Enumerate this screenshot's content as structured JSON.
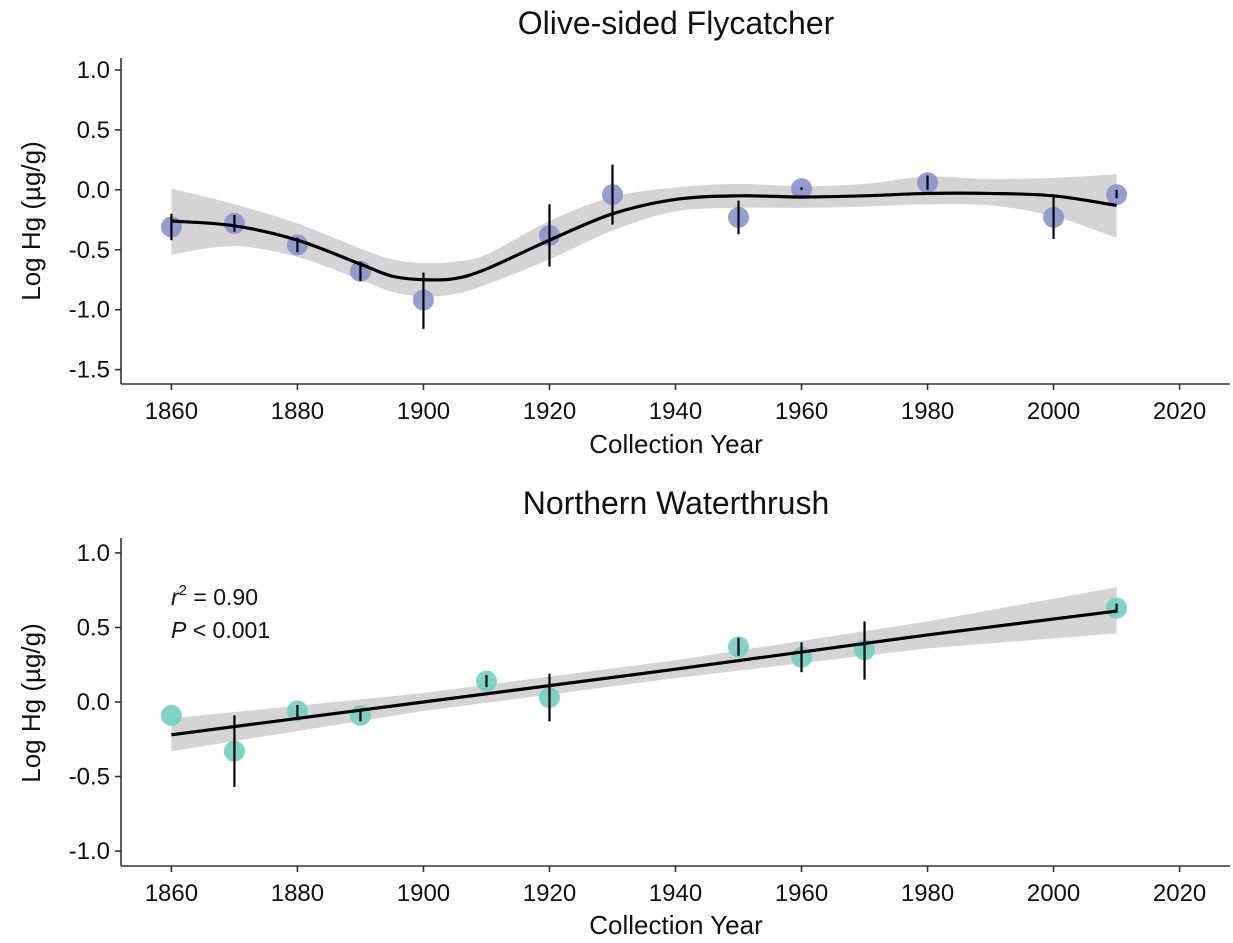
{
  "chart_data": [
    {
      "type": "scatter",
      "title": "Olive-sided Flycatcher",
      "xlabel": "Collection Year",
      "ylabel": "Log Hg (µg/g)",
      "xlim": [
        1852,
        2028
      ],
      "ylim": [
        -1.62,
        1.1
      ],
      "xticks": [
        1860,
        1880,
        1900,
        1920,
        1940,
        1960,
        1980,
        2000,
        2020
      ],
      "yticks": [
        1.0,
        0.5,
        0.0,
        -0.5,
        -1.0,
        -1.5
      ],
      "ytick_labels": [
        "1.0",
        "0.5",
        "0.0",
        "-0.5",
        "-1.0",
        "-1.5"
      ],
      "grid": false,
      "point_color": "#8a94cb",
      "points": [
        {
          "x": 1860,
          "y": -0.31,
          "lo": -0.42,
          "hi": -0.2
        },
        {
          "x": 1870,
          "y": -0.28,
          "lo": -0.35,
          "hi": -0.21
        },
        {
          "x": 1880,
          "y": -0.46,
          "lo": -0.52,
          "hi": -0.4
        },
        {
          "x": 1890,
          "y": -0.68,
          "lo": -0.76,
          "hi": -0.6
        },
        {
          "x": 1900,
          "y": -0.92,
          "lo": -1.16,
          "hi": -0.69
        },
        {
          "x": 1920,
          "y": -0.38,
          "lo": -0.64,
          "hi": -0.12
        },
        {
          "x": 1930,
          "y": -0.04,
          "lo": -0.29,
          "hi": 0.21
        },
        {
          "x": 1950,
          "y": -0.23,
          "lo": -0.37,
          "hi": -0.09
        },
        {
          "x": 1960,
          "y": 0.01,
          "lo": 0.0,
          "hi": 0.02
        },
        {
          "x": 1980,
          "y": 0.06,
          "lo": 0.0,
          "hi": 0.12
        },
        {
          "x": 2000,
          "y": -0.23,
          "lo": -0.41,
          "hi": -0.06
        },
        {
          "x": 2010,
          "y": -0.04,
          "lo": -0.07,
          "hi": 0.0
        }
      ],
      "trend": {
        "type": "smooth",
        "x": [
          1860,
          1870,
          1880,
          1890,
          1895,
          1900,
          1905,
          1910,
          1920,
          1930,
          1940,
          1950,
          1960,
          1970,
          1980,
          1990,
          2000,
          2010
        ],
        "y": [
          -0.26,
          -0.3,
          -0.42,
          -0.62,
          -0.72,
          -0.75,
          -0.74,
          -0.66,
          -0.42,
          -0.2,
          -0.08,
          -0.05,
          -0.06,
          -0.05,
          -0.03,
          -0.03,
          -0.05,
          -0.13
        ],
        "ci_lo": [
          -0.54,
          -0.47,
          -0.56,
          -0.75,
          -0.85,
          -0.89,
          -0.87,
          -0.79,
          -0.58,
          -0.34,
          -0.18,
          -0.15,
          -0.15,
          -0.14,
          -0.12,
          -0.13,
          -0.22,
          -0.4
        ],
        "ci_hi": [
          0.01,
          -0.12,
          -0.28,
          -0.49,
          -0.58,
          -0.61,
          -0.6,
          -0.54,
          -0.26,
          -0.06,
          0.02,
          0.05,
          0.03,
          0.05,
          0.11,
          0.09,
          0.1,
          0.13
        ],
        "line_color": "#000000",
        "band_color": "#d4d4d4"
      },
      "annotations": []
    },
    {
      "type": "scatter",
      "title": "Northern Waterthrush",
      "xlabel": "Collection Year",
      "ylabel": "Log Hg (µg/g)",
      "xlim": [
        1852,
        2028
      ],
      "ylim": [
        -1.1,
        1.1
      ],
      "xticks": [
        1860,
        1880,
        1900,
        1920,
        1940,
        1960,
        1980,
        2000,
        2020
      ],
      "yticks": [
        1.0,
        0.5,
        0.0,
        -0.5,
        -1.0
      ],
      "ytick_labels": [
        "1.0",
        "0.5",
        "0.0",
        "-0.5",
        "-1.0"
      ],
      "grid": false,
      "point_color": "#6fd0c2",
      "points": [
        {
          "x": 1860,
          "y": -0.09,
          "lo": -0.09,
          "hi": -0.09
        },
        {
          "x": 1870,
          "y": -0.33,
          "lo": -0.57,
          "hi": -0.09
        },
        {
          "x": 1880,
          "y": -0.06,
          "lo": -0.1,
          "hi": -0.02
        },
        {
          "x": 1890,
          "y": -0.09,
          "lo": -0.13,
          "hi": -0.05
        },
        {
          "x": 1910,
          "y": 0.14,
          "lo": 0.1,
          "hi": 0.18
        },
        {
          "x": 1920,
          "y": 0.03,
          "lo": -0.13,
          "hi": 0.19
        },
        {
          "x": 1950,
          "y": 0.37,
          "lo": 0.31,
          "hi": 0.43
        },
        {
          "x": 1960,
          "y": 0.3,
          "lo": 0.2,
          "hi": 0.4
        },
        {
          "x": 1970,
          "y": 0.35,
          "lo": 0.15,
          "hi": 0.54
        },
        {
          "x": 2010,
          "y": 0.63,
          "lo": 0.6,
          "hi": 0.66
        }
      ],
      "trend": {
        "type": "linear",
        "x": [
          1860,
          1900,
          1940,
          1980,
          2010
        ],
        "y": [
          -0.22,
          0.0,
          0.22,
          0.45,
          0.61
        ],
        "ci_lo": [
          -0.33,
          -0.06,
          0.16,
          0.36,
          0.46
        ],
        "ci_hi": [
          -0.11,
          0.06,
          0.28,
          0.54,
          0.77
        ],
        "line_color": "#000000",
        "band_color": "#d4d4d4"
      },
      "annotations": [
        {
          "kind": "r2",
          "var": "r",
          "sup": "2",
          "text": " = 0.90"
        },
        {
          "kind": "p",
          "var": "P",
          "text": " < 0.001"
        }
      ]
    }
  ]
}
